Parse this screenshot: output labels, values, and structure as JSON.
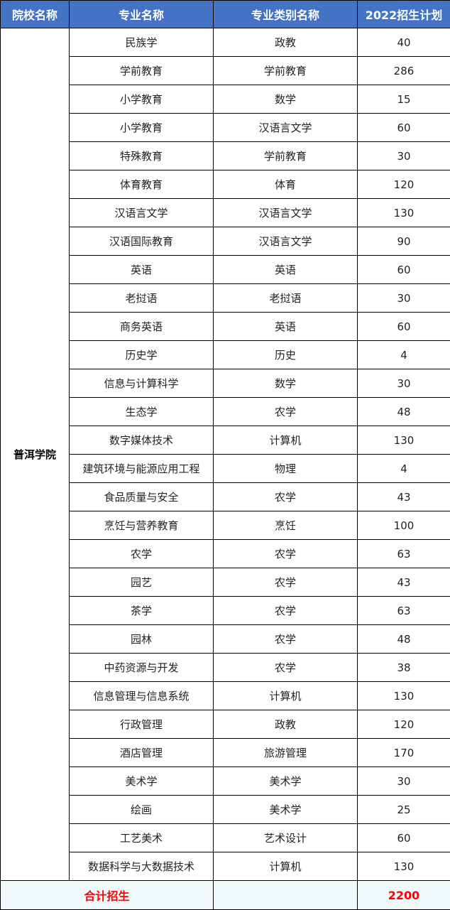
{
  "headers": [
    "院校名称",
    "专业名称",
    "专业类别名称",
    "2022招生计划"
  ],
  "school": "普洱学院",
  "rows": [
    [
      "民族学",
      "政教",
      "40"
    ],
    [
      "学前教育",
      "学前教育",
      "286"
    ],
    [
      "小学教育",
      "数学",
      "15"
    ],
    [
      "小学教育",
      "汉语言文学",
      "60"
    ],
    [
      "特殊教育",
      "学前教育",
      "30"
    ],
    [
      "体育教育",
      "体育",
      "120"
    ],
    [
      "汉语言文学",
      "汉语言文学",
      "130"
    ],
    [
      "汉语国际教育",
      "汉语言文学",
      "90"
    ],
    [
      "英语",
      "英语",
      "60"
    ],
    [
      "老挝语",
      "老挝语",
      "30"
    ],
    [
      "商务英语",
      "英语",
      "60"
    ],
    [
      "历史学",
      "历史",
      "4"
    ],
    [
      "信息与计算科学",
      "数学",
      "30"
    ],
    [
      "生态学",
      "农学",
      "48"
    ],
    [
      "数字媒体技术",
      "计算机",
      "130"
    ],
    [
      "建筑环境与能源应用工程",
      "物理",
      "4"
    ],
    [
      "食品质量与安全",
      "农学",
      "43"
    ],
    [
      "烹饪与营养教育",
      "烹饪",
      "100"
    ],
    [
      "农学",
      "农学",
      "63"
    ],
    [
      "园艺",
      "农学",
      "43"
    ],
    [
      "茶学",
      "农学",
      "63"
    ],
    [
      "园林",
      "农学",
      "48"
    ],
    [
      "中药资源与开发",
      "农学",
      "38"
    ],
    [
      "信息管理与信息系统",
      "计算机",
      "130"
    ],
    [
      "行政管理",
      "政教",
      "120"
    ],
    [
      "酒店管理",
      "旅游管理",
      "170"
    ],
    [
      "美术学",
      "美术学",
      "30"
    ],
    [
      "绘画",
      "美术学",
      "25"
    ],
    [
      "工艺美术",
      "艺术设计",
      "60"
    ],
    [
      "数据科学与大数据技术",
      "计算机",
      "130"
    ]
  ],
  "total": {
    "label": "合计招生",
    "value": "2200"
  },
  "colors": {
    "header_bg": "#4472c4",
    "total_text": "#ff0000",
    "total_bg": "#f2f9fb"
  }
}
